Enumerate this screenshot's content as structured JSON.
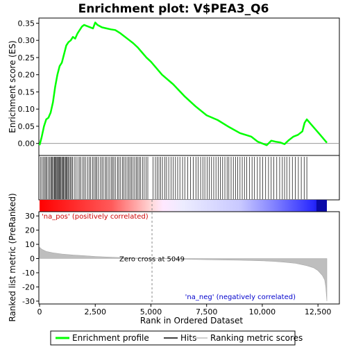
{
  "chart_data": {
    "type": "line",
    "title": "Enrichment plot: V$PEA3_Q6",
    "xlabel": "Rank in Ordered Dataset",
    "ylabel_top": "Enrichment score (ES)",
    "ylabel_bottom": "Ranked list metric (PreRanked)",
    "xlim": [
      0,
      13000
    ],
    "ylim_top": [
      -0.035,
      0.365
    ],
    "ylim_bottom": [
      -32,
      33
    ],
    "xticks": [
      0,
      2500,
      5000,
      7500,
      10000,
      12500
    ],
    "xtick_labels": [
      "0",
      "2,500",
      "5,000",
      "7,500",
      "10,000",
      "12,500"
    ],
    "yticks_top": [
      0.0,
      0.05,
      0.1,
      0.15,
      0.2,
      0.25,
      0.3,
      0.35
    ],
    "ytick_labels_top": [
      "0.00",
      "0.05",
      "0.10",
      "0.15",
      "0.20",
      "0.25",
      "0.30",
      "0.35"
    ],
    "yticks_bottom": [
      -30,
      -20,
      -10,
      0,
      10,
      20,
      30
    ],
    "ytick_labels_bottom": [
      "-30",
      "-20",
      "-10",
      "0",
      "10",
      "20",
      "30"
    ],
    "zero_cross": 5049,
    "n_genes": 12900,
    "zero_cross_label": "Zero cross at 5049",
    "pos_label": "'na_pos' (positively correlated)",
    "neg_label": "'na_neg' (negatively correlated)",
    "series": [
      {
        "name": "Enrichment profile",
        "color": "#00ff00",
        "x": [
          0,
          100,
          200,
          300,
          400,
          500,
          600,
          700,
          800,
          900,
          1000,
          1100,
          1200,
          1300,
          1400,
          1500,
          1600,
          1700,
          1800,
          1900,
          2000,
          2200,
          2400,
          2500,
          2600,
          2800,
          3000,
          3200,
          3400,
          3600,
          3800,
          4000,
          4200,
          4400,
          4600,
          4800,
          5000,
          5500,
          6000,
          6500,
          7000,
          7500,
          8000,
          8500,
          9000,
          9500,
          9800,
          10000,
          10200,
          10400,
          10600,
          10800,
          11000,
          11200,
          11400,
          11600,
          11800,
          11900,
          12000,
          12200,
          12400,
          12600,
          12900
        ],
        "y": [
          -0.005,
          0.02,
          0.05,
          0.07,
          0.075,
          0.09,
          0.12,
          0.165,
          0.2,
          0.225,
          0.235,
          0.26,
          0.285,
          0.295,
          0.3,
          0.31,
          0.305,
          0.32,
          0.33,
          0.34,
          0.345,
          0.34,
          0.335,
          0.352,
          0.345,
          0.338,
          0.335,
          0.332,
          0.33,
          0.322,
          0.312,
          0.302,
          0.292,
          0.28,
          0.265,
          0.25,
          0.238,
          0.2,
          0.172,
          0.138,
          0.108,
          0.082,
          0.068,
          0.048,
          0.03,
          0.02,
          0.005,
          0.0,
          -0.005,
          0.008,
          0.005,
          0.003,
          -0.002,
          0.01,
          0.02,
          0.025,
          0.035,
          0.06,
          0.07,
          0.055,
          0.04,
          0.025,
          0.002
        ]
      },
      {
        "name": "Hits",
        "color": "#000000"
      },
      {
        "name": "Ranking metric scores",
        "color": "#bebebe"
      }
    ],
    "hits": [
      40,
      110,
      170,
      230,
      280,
      330,
      390,
      450,
      500,
      540,
      580,
      630,
      670,
      710,
      740,
      780,
      810,
      850,
      880,
      920,
      960,
      1000,
      1040,
      1080,
      1120,
      1160,
      1200,
      1240,
      1280,
      1320,
      1380,
      1430,
      1480,
      1560,
      1640,
      1720,
      1800,
      1860,
      1940,
      2000,
      2080,
      2160,
      2240,
      2300,
      2380,
      2450,
      2520,
      2560,
      2640,
      2720,
      2800,
      2860,
      2940,
      3000,
      3080,
      3150,
      3220,
      3290,
      3340,
      3420,
      3500,
      3560,
      3640,
      3720,
      3790,
      3860,
      3930,
      4000,
      4060,
      4130,
      4200,
      4270,
      4340,
      4400,
      4470,
      4540,
      4620,
      4700,
      4780,
      4860,
      5100,
      5200,
      5280,
      5360,
      5440,
      5520,
      5620,
      5700,
      5800,
      5900,
      6000,
      6100,
      6200,
      6300,
      6420,
      6520,
      6650,
      6780,
      6900,
      7020,
      7120,
      7230,
      7330,
      7420,
      7520,
      7620,
      7720,
      7820,
      7920,
      8020,
      8120,
      8220,
      8320,
      8420,
      8500,
      8600,
      8700,
      8800,
      8900,
      9000,
      9100,
      9200,
      9300,
      9420,
      9540,
      9650,
      9780,
      9900,
      10020,
      10150,
      10280,
      10400,
      10520,
      10650,
      10780,
      10900,
      11000,
      11100,
      11220,
      11350,
      11480,
      11620,
      11750,
      11880,
      12000
    ],
    "metric_profile": {
      "x": [
        0,
        100,
        300,
        600,
        1000,
        1500,
        2000,
        2500,
        3000,
        3500,
        4000,
        4500,
        5049,
        6000,
        7000,
        8000,
        9000,
        10000,
        10500,
        11000,
        11500,
        12000,
        12300,
        12500,
        12700,
        12800,
        12850,
        12900
      ],
      "y": [
        8,
        6.5,
        5,
        4,
        3.2,
        2.5,
        2,
        1.5,
        1.1,
        0.8,
        0.5,
        0.3,
        0,
        -0.3,
        -0.6,
        -0.9,
        -1.2,
        -1.6,
        -2,
        -2.6,
        -3.4,
        -5,
        -6.5,
        -8.5,
        -12,
        -15,
        -20,
        -30
      ]
    }
  }
}
